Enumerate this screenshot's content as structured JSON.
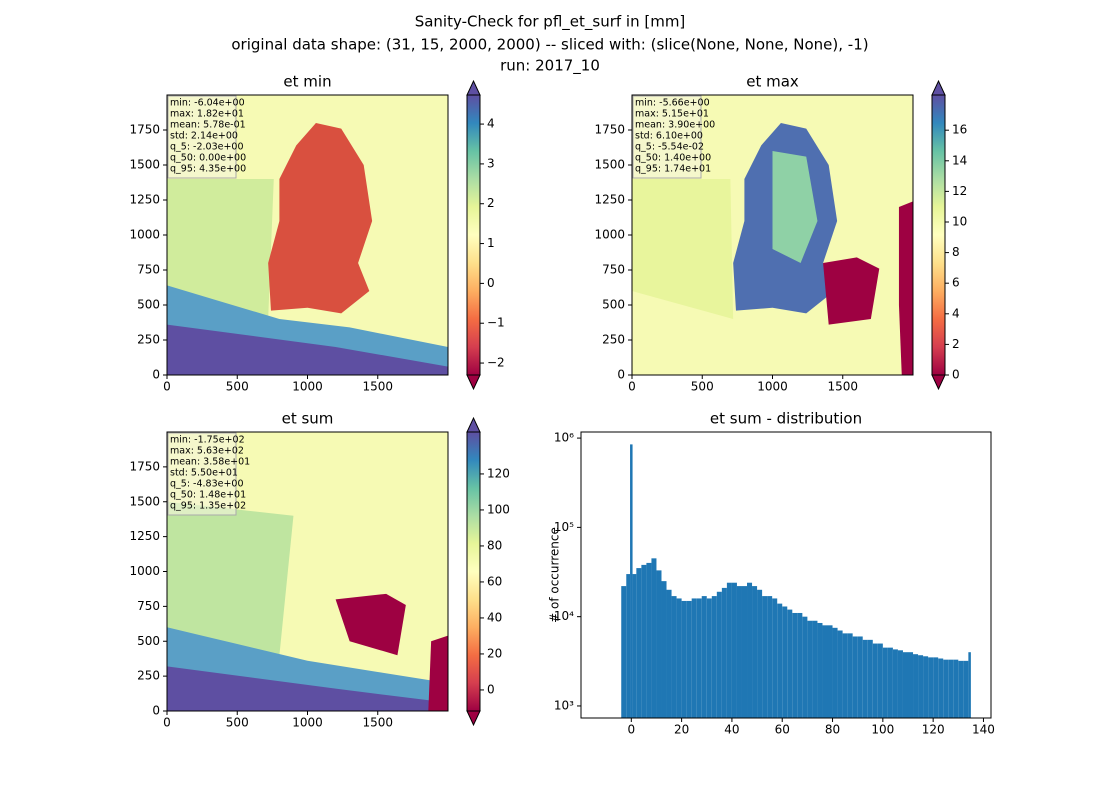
{
  "figure_title": [
    "Sanity-Check for pfl_et_surf in [mm]",
    "original data shape: (31, 15, 2000, 2000) -- sliced with: (slice(None, None, None), -1)",
    "run: 2017_10"
  ],
  "chart_data": [
    {
      "type": "heatmap",
      "title": "et min",
      "stats": [
        "min: -6.04e+00",
        "max: 1.82e+01",
        "mean: 5.78e-01",
        "std: 2.14e+00",
        "q_5: -2.03e+00",
        "q_50: 0.00e+00",
        "q_95: 4.35e+00"
      ],
      "xlim": [
        0,
        2000
      ],
      "ylim": [
        0,
        2000
      ],
      "xticks": [
        0,
        500,
        1000,
        1500
      ],
      "yticks": [
        0,
        250,
        500,
        750,
        1000,
        1250,
        1500,
        1750
      ],
      "clim": [
        -2.3,
        4.73
      ],
      "cticks": [
        {
          "value": -2,
          "label": "−2"
        },
        {
          "value": -1,
          "label": "−1"
        },
        0,
        1,
        2,
        3,
        4
      ]
    },
    {
      "type": "heatmap",
      "title": "et max",
      "stats": [
        "min: -5.66e+00",
        "max: 5.15e+01",
        "mean: 3.90e+00",
        "std: 6.10e+00",
        "q_5: -5.54e-02",
        "q_50: 1.40e+00",
        "q_95: 1.74e+01"
      ],
      "xlim": [
        0,
        2000
      ],
      "ylim": [
        0,
        2000
      ],
      "xticks": [
        0,
        500,
        1000,
        1500
      ],
      "yticks": [
        0,
        250,
        500,
        750,
        1000,
        1250,
        1500,
        1750
      ],
      "clim": [
        0,
        18.3
      ],
      "cticks": [
        0,
        2,
        4,
        6,
        8,
        10,
        12,
        14,
        16
      ]
    },
    {
      "type": "heatmap",
      "title": "et sum",
      "stats": [
        "min: -1.75e+02",
        "max: 5.63e+02",
        "mean: 3.58e+01",
        "std: 5.50e+01",
        "q_5: -4.83e+00",
        "q_50: 1.48e+01",
        "q_95: 1.35e+02"
      ],
      "xlim": [
        0,
        2000
      ],
      "ylim": [
        0,
        2000
      ],
      "xticks": [
        0,
        500,
        1000,
        1500
      ],
      "yticks": [
        0,
        250,
        500,
        750,
        1000,
        1250,
        1500,
        1750
      ],
      "clim": [
        -11.7,
        143.3
      ],
      "cticks": [
        0,
        20,
        40,
        60,
        80,
        100,
        120
      ]
    },
    {
      "type": "histogram",
      "title": "et sum - distribution",
      "y_label": "# of occurrence",
      "color": "#1f77b4",
      "log_y": true,
      "bins": [
        -4,
        -2,
        -0.5,
        0.5,
        2,
        4,
        6,
        8,
        10,
        12,
        14,
        16,
        18,
        20,
        22,
        24,
        26,
        28,
        30,
        32,
        34,
        36,
        38,
        40,
        42,
        44,
        46,
        48,
        50,
        52,
        54,
        56,
        58,
        60,
        62,
        64,
        66,
        68,
        70,
        72,
        74,
        76,
        78,
        80,
        82,
        84,
        86,
        88,
        90,
        92,
        94,
        96,
        98,
        100,
        102,
        104,
        106,
        108,
        110,
        112,
        114,
        116,
        118,
        120,
        122,
        124,
        126,
        128,
        130,
        132,
        134,
        135
      ],
      "values": [
        22000,
        30000,
        850000,
        30000,
        35000,
        38000,
        40000,
        45000,
        33000,
        25000,
        20000,
        17000,
        16000,
        15000,
        15000,
        16000,
        16000,
        17000,
        16000,
        17000,
        19000,
        21000,
        24000,
        24000,
        22000,
        22000,
        24000,
        22000,
        20000,
        17000,
        17000,
        16000,
        14000,
        13000,
        12000,
        11000,
        11000,
        10000,
        9000,
        9000,
        8500,
        8000,
        8000,
        7500,
        7000,
        6500,
        6500,
        6000,
        6000,
        5500,
        5500,
        5000,
        5000,
        4500,
        4500,
        4300,
        4200,
        4000,
        4000,
        3800,
        3700,
        3600,
        3500,
        3500,
        3400,
        3300,
        3300,
        3300,
        3200,
        3200,
        4000
      ],
      "xlim": [
        -20,
        143
      ],
      "ylim": [
        733,
        1170000
      ],
      "xticks": [
        0,
        20,
        40,
        60,
        80,
        100,
        120,
        140
      ],
      "yticks": [
        {
          "value": 1000,
          "label": "10³"
        },
        {
          "value": 10000,
          "label": "10⁴"
        },
        {
          "value": 100000,
          "label": "10⁵"
        },
        {
          "value": 1000000,
          "label": "10⁶"
        }
      ]
    }
  ]
}
